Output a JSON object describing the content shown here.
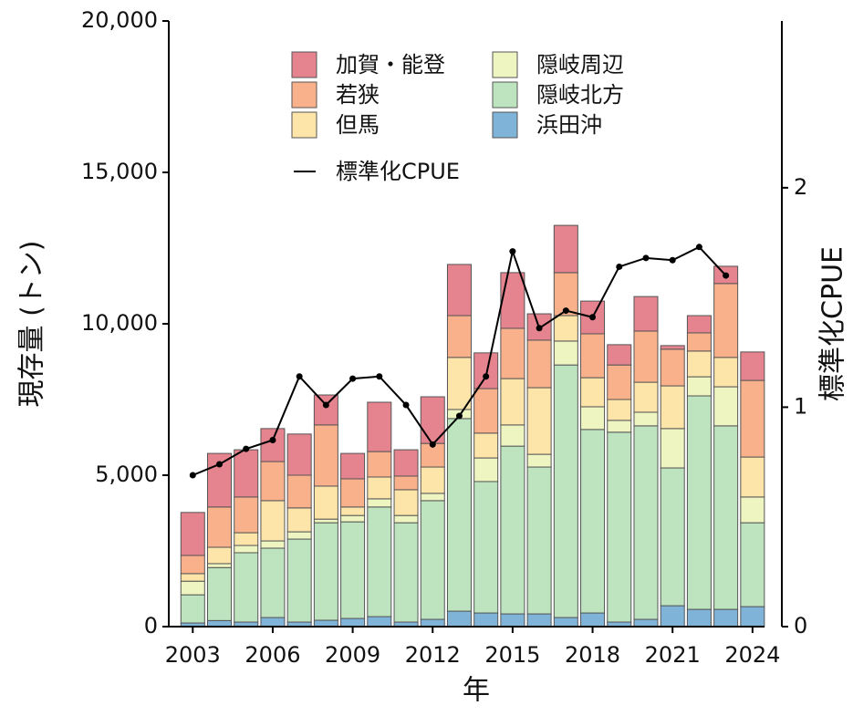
{
  "chart_data": {
    "type": "bar",
    "stacked": true,
    "x_label": "年",
    "y_label": "現存量 (トン)",
    "y2_label": "標準化CPUE",
    "x": [
      2003,
      2004,
      2005,
      2006,
      2007,
      2008,
      2009,
      2010,
      2011,
      2012,
      2013,
      2014,
      2015,
      2016,
      2017,
      2018,
      2019,
      2020,
      2021,
      2022,
      2023,
      2024
    ],
    "xlim": [
      2002.1,
      2024.45
    ],
    "xticks": [
      2003,
      2006,
      2009,
      2012,
      2015,
      2018,
      2021,
      2024
    ],
    "ylim": [
      0,
      20000
    ],
    "yticks": [
      0,
      {
        "value": 5000,
        "label": "5,000"
      },
      {
        "value": 10000,
        "label": "10,000"
      },
      {
        "value": 15000,
        "label": "15,000"
      },
      {
        "value": 20000,
        "label": "20,000"
      }
    ],
    "y2lim": [
      0,
      2.76
    ],
    "y2ticks": [
      0,
      1,
      2
    ],
    "edge_color": "#555555",
    "series": [
      {
        "name": "浜田沖",
        "color": "#7fb3d8",
        "values": [
          120,
          200,
          150,
          300,
          150,
          210,
          270,
          330,
          150,
          240,
          510,
          450,
          420,
          420,
          300,
          450,
          150,
          240,
          690,
          570,
          570,
          660
        ]
      },
      {
        "name": "隠岐北方",
        "color": "#bee4bf",
        "values": [
          930,
          1750,
          2290,
          2290,
          2740,
          3220,
          3190,
          3620,
          3280,
          3920,
          6360,
          4340,
          5540,
          4850,
          8340,
          6060,
          6270,
          6390,
          4550,
          7050,
          6060,
          2770
        ]
      },
      {
        "name": "隠岐周辺",
        "color": "#eef5c1",
        "values": [
          450,
          130,
          240,
          240,
          240,
          120,
          210,
          270,
          240,
          240,
          300,
          780,
          700,
          420,
          790,
          750,
          390,
          450,
          1300,
          630,
          1290,
          850
        ]
      },
      {
        "name": "但馬",
        "color": "#fde4a8",
        "values": [
          250,
          540,
          420,
          1330,
          790,
          1090,
          280,
          720,
          850,
          870,
          1720,
          820,
          1530,
          2200,
          840,
          960,
          690,
          990,
          1410,
          850,
          970,
          1320
        ]
      },
      {
        "name": "若狭",
        "color": "#f9b18c",
        "values": [
          600,
          1330,
          1180,
          1290,
          1080,
          2020,
          930,
          840,
          450,
          780,
          1380,
          1470,
          1660,
          1570,
          1420,
          1450,
          1140,
          1690,
          1210,
          600,
          2440,
          2530
        ]
      },
      {
        "name": "加賀・能登",
        "color": "#e5838f",
        "values": [
          1420,
          1770,
          1560,
          1090,
          1360,
          990,
          840,
          1630,
          870,
          1540,
          1690,
          1180,
          1840,
          870,
          1560,
          1080,
          670,
          1140,
          120,
          570,
          570,
          940
        ]
      },
      {
        "name": "標準化CPUE",
        "type": "line",
        "axis": "y2",
        "color": "#000000",
        "values": [
          0.69,
          0.74,
          0.81,
          0.85,
          1.14,
          1.01,
          1.13,
          1.14,
          1.01,
          0.83,
          0.96,
          1.14,
          1.71,
          1.36,
          1.44,
          1.41,
          1.64,
          1.68,
          1.67,
          1.73,
          1.6,
          null
        ]
      }
    ]
  }
}
